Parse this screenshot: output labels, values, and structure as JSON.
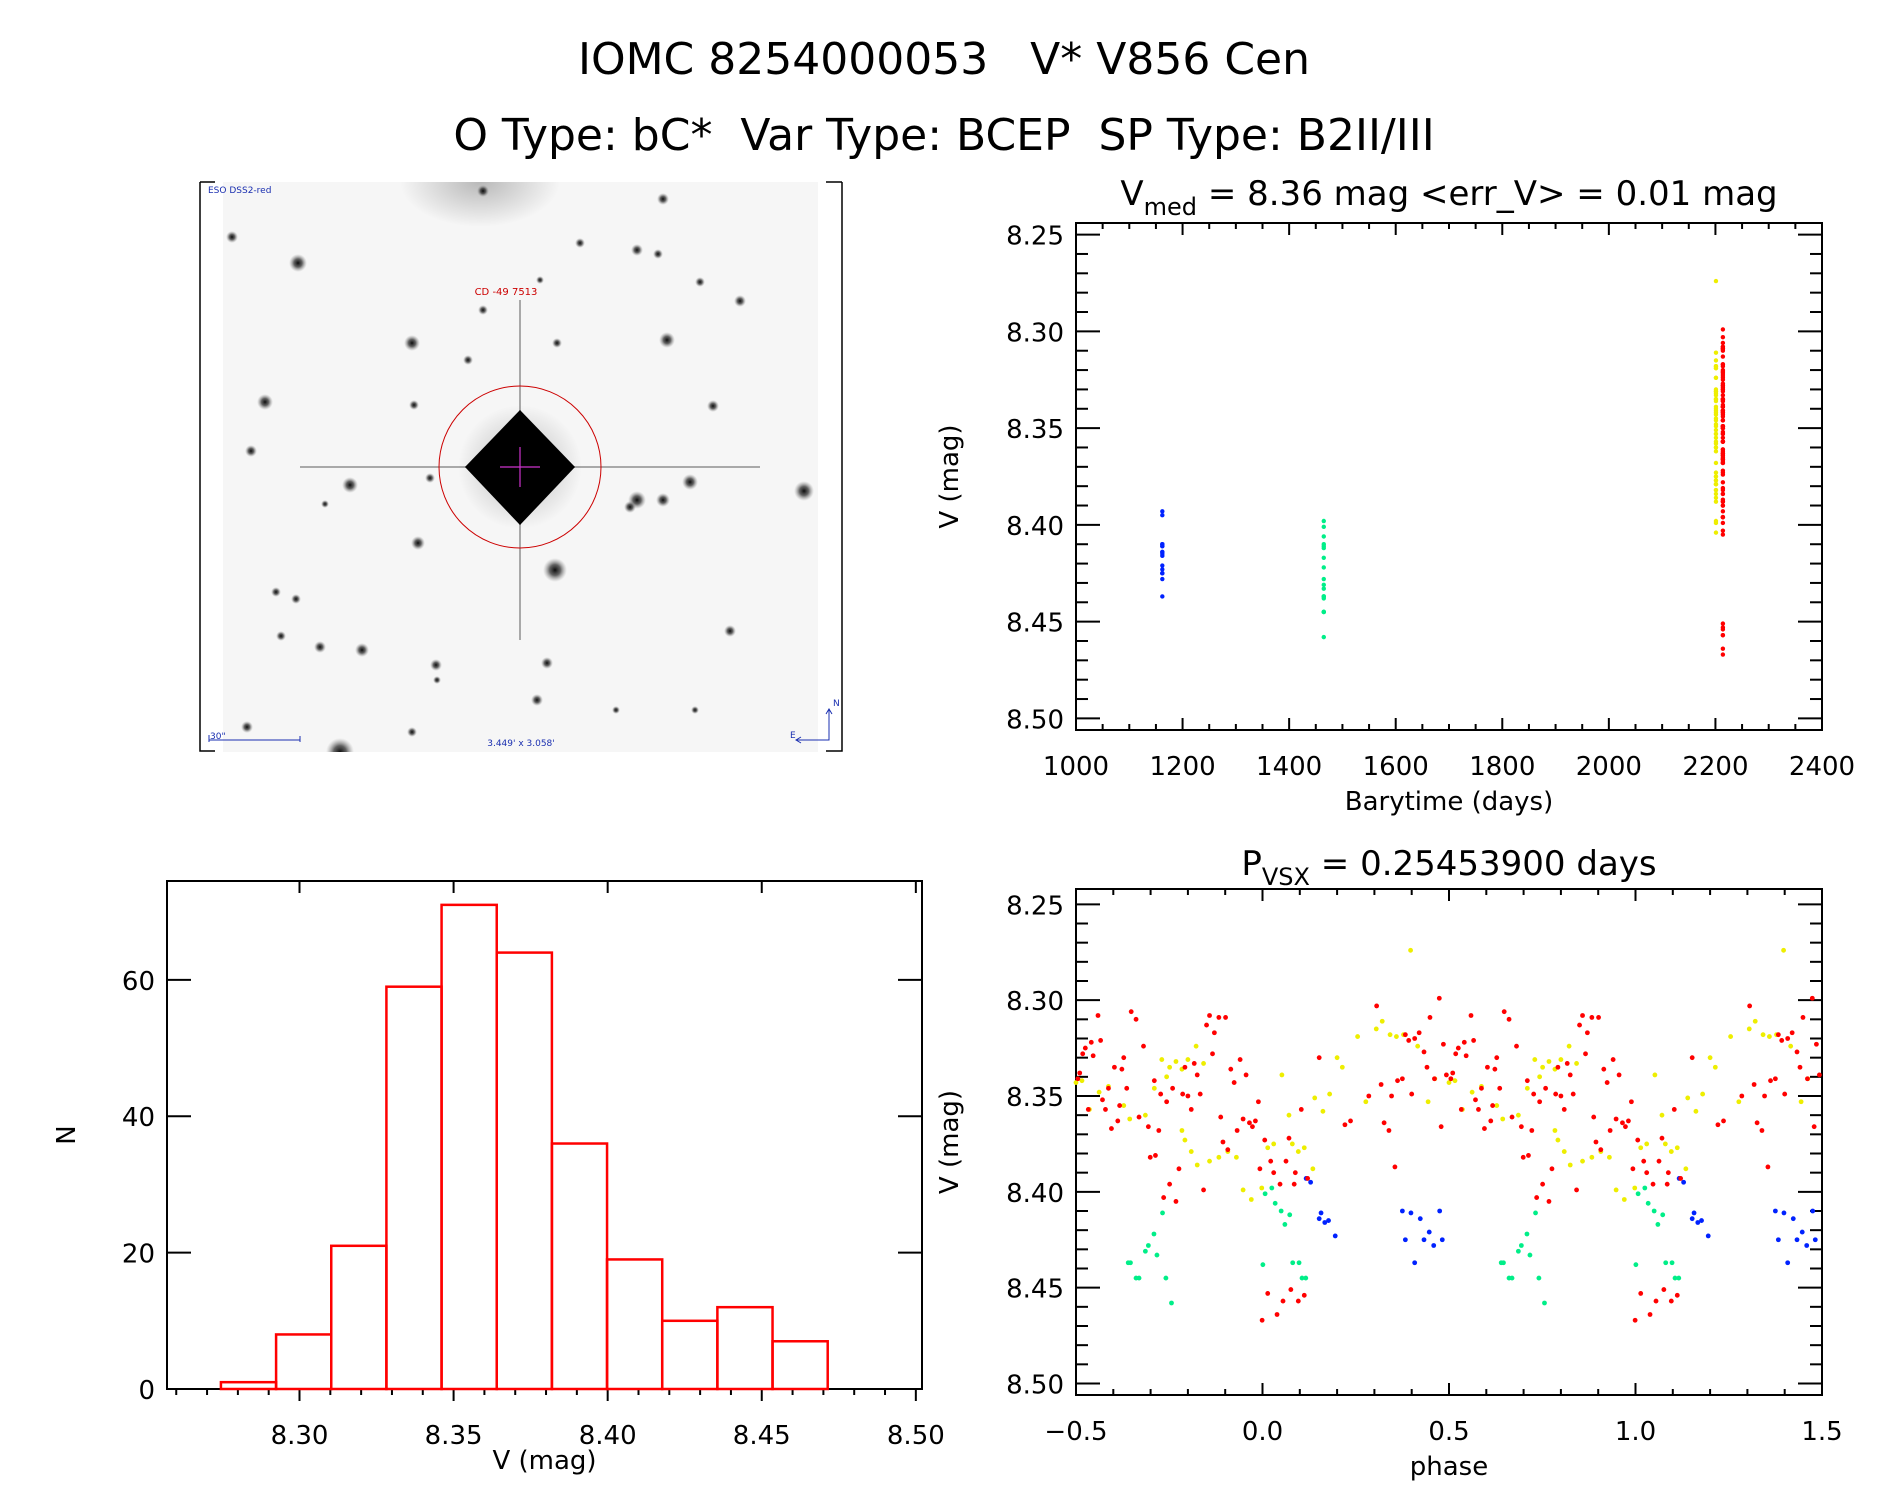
{
  "header": {
    "title_line1": "IOMC 8254000053   V* V856 Cen",
    "title_line2": "O Type: bC*  Var Type: BCEP  SP Type: B2II/III"
  },
  "finder_image": {
    "survey_label": "ESO DSS2-red",
    "target_label": "CD -49 7513",
    "scale_label": "30\"",
    "field_label": "3.449' x 3.058'",
    "north_label": "N",
    "east_label": "E",
    "colors": {
      "survey_text": "#1a2fb0",
      "target_text": "#cc0000",
      "circle": "#cc0000",
      "crosshair": "#cc33cc"
    }
  },
  "chart_data": [
    {
      "id": "histogram",
      "type": "bar",
      "style": "step-outline",
      "color": "#ff0000",
      "xlabel": "V (mag)",
      "ylabel": "N",
      "xlim": [
        8.257,
        8.502
      ],
      "ylim": [
        0,
        74.5
      ],
      "xticks": [
        "8.30",
        "8.35",
        "8.40",
        "8.45",
        "8.50"
      ],
      "yticks": [
        "0",
        "20",
        "40",
        "60"
      ],
      "bin_start": 8.2745,
      "bin_width": 0.0179,
      "values": [
        1,
        8,
        21,
        59,
        71,
        64,
        36,
        19,
        10,
        12,
        7
      ]
    },
    {
      "id": "lightcurve",
      "type": "scatter",
      "title": "V",
      "title_sub": "med",
      "title_rest": " = 8.36 mag <err_V> = 0.01 mag",
      "xlabel": "Barytime (days)",
      "ylabel": "V (mag)",
      "xlim": [
        1000,
        2400
      ],
      "ylim": [
        8.506,
        8.244
      ],
      "y_inverted": true,
      "xticks": [
        "1000",
        "1200",
        "1400",
        "1600",
        "1800",
        "2000",
        "2200",
        "2400"
      ],
      "yticks": [
        "8.25",
        "8.30",
        "8.35",
        "8.40",
        "8.45",
        "8.50"
      ]
    },
    {
      "id": "phased",
      "type": "scatter",
      "title": "P",
      "title_sub": "VSX",
      "title_rest": " = 0.25453900 days",
      "period_days": 0.254539,
      "xlabel": "phase",
      "ylabel": "V (mag)",
      "xlim": [
        -0.5,
        1.5
      ],
      "ylim": [
        8.506,
        8.242
      ],
      "y_inverted": true,
      "xticks": [
        "−0.5",
        "0.0",
        "0.5",
        "1.0",
        "1.5"
      ],
      "yticks": [
        "8.25",
        "8.30",
        "8.35",
        "8.40",
        "8.45",
        "8.50"
      ]
    }
  ],
  "observations": [
    {
      "color": "#0022ff",
      "barytime": 1162,
      "phase": [
        0.117,
        0.129,
        0.152,
        0.157,
        0.167,
        0.177,
        0.195,
        0.375,
        0.383,
        0.398,
        0.408,
        0.423,
        0.433,
        0.447,
        0.459,
        0.475,
        0.482
      ],
      "v_mag": [
        8.393,
        8.395,
        8.414,
        8.411,
        8.416,
        8.415,
        8.423,
        8.41,
        8.425,
        8.411,
        8.437,
        8.414,
        8.425,
        8.421,
        8.428,
        8.41,
        8.425
      ]
    },
    {
      "color": "#00ee88",
      "barytime": 1465,
      "phase": [
        -0.36,
        -0.354,
        -0.339,
        -0.331,
        -0.314,
        -0.306,
        -0.291,
        -0.283,
        -0.268,
        -0.259,
        -0.244,
        0.001,
        0.007,
        0.025,
        0.034,
        0.05,
        0.06,
        0.073,
        0.081,
        0.098,
        0.106,
        0.116
      ],
      "v_mag": [
        8.437,
        8.437,
        8.445,
        8.445,
        8.431,
        8.428,
        8.422,
        8.433,
        8.411,
        8.445,
        8.458,
        8.438,
        8.401,
        8.398,
        8.406,
        8.41,
        8.417,
        8.412,
        8.437,
        8.437,
        8.445,
        8.445
      ]
    },
    {
      "color": "#eeee00",
      "barytime": 2201,
      "phase": [
        -0.5,
        -0.484,
        -0.464,
        -0.438,
        -0.413,
        -0.372,
        -0.356,
        -0.314,
        -0.29,
        -0.27,
        -0.257,
        -0.249,
        -0.232,
        -0.216,
        -0.2,
        -0.178,
        -0.158,
        -0.216,
        -0.208,
        -0.191,
        -0.175,
        -0.142,
        -0.117,
        -0.093,
        -0.07,
        -0.052,
        -0.03,
        -0.002,
        0.014,
        0.03,
        0.052,
        0.071,
        0.08,
        0.096,
        0.112,
        0.135,
        0.14,
        0.162,
        0.18,
        0.2,
        0.214,
        0.255,
        0.277,
        0.305,
        0.321,
        0.342,
        0.359,
        0.378,
        0.397,
        0.416,
        0.444,
        0.462
      ],
      "v_mag": [
        8.343,
        8.342,
        8.357,
        8.348,
        8.345,
        8.355,
        8.362,
        8.36,
        8.346,
        8.331,
        8.34,
        8.335,
        8.332,
        8.336,
        8.331,
        8.324,
        8.333,
        8.368,
        8.373,
        8.379,
        8.386,
        8.384,
        8.382,
        8.379,
        8.382,
        8.399,
        8.404,
        8.398,
        8.377,
        8.375,
        8.339,
        8.36,
        8.375,
        8.379,
        8.377,
        8.388,
        8.351,
        8.358,
        8.349,
        8.33,
        8.335,
        8.319,
        8.353,
        8.315,
        8.311,
        8.318,
        8.319,
        8.318,
        8.274,
        8.324,
        8.353,
        8.341
      ]
    },
    {
      "color": "#ff0000",
      "barytime": 2214,
      "phase": [
        -0.495,
        -0.49,
        -0.482,
        -0.475,
        -0.467,
        -0.459,
        -0.454,
        -0.441,
        -0.434,
        -0.429,
        -0.421,
        -0.413,
        -0.405,
        -0.397,
        -0.388,
        -0.383,
        -0.377,
        -0.372,
        -0.364,
        -0.352,
        -0.339,
        -0.331,
        -0.319,
        -0.306,
        -0.301,
        -0.29,
        -0.287,
        -0.278,
        -0.273,
        -0.265,
        -0.257,
        -0.249,
        -0.241,
        -0.232,
        -0.224,
        -0.214,
        -0.208,
        -0.2,
        -0.191,
        -0.183,
        -0.175,
        -0.167,
        -0.158,
        -0.15,
        -0.142,
        -0.134,
        -0.129,
        -0.117,
        -0.112,
        -0.106,
        -0.099,
        -0.093,
        -0.085,
        -0.076,
        -0.068,
        -0.06,
        -0.052,
        -0.044,
        -0.035,
        -0.027,
        -0.019,
        -0.011,
        -0.007,
        -0.001,
        0.006,
        0.014,
        0.022,
        0.03,
        0.039,
        0.047,
        0.055,
        0.063,
        0.071,
        0.076,
        0.085,
        0.088,
        0.096,
        0.104,
        0.112,
        0.121,
        0.152,
        0.221,
        0.236,
        0.285,
        0.306,
        0.318,
        0.326,
        0.339,
        0.346,
        0.355,
        0.362,
        0.375,
        0.383,
        0.392,
        0.4,
        0.408,
        0.42,
        0.433,
        0.441,
        0.449,
        0.461,
        0.474,
        0.479,
        0.485,
        0.493
      ],
      "v_mag": [
        8.341,
        8.338,
        8.328,
        8.325,
        8.357,
        8.322,
        8.329,
        8.308,
        8.321,
        8.352,
        8.357,
        8.346,
        8.367,
        8.335,
        8.363,
        8.355,
        8.336,
        8.33,
        8.346,
        8.306,
        8.31,
        8.361,
        8.324,
        8.366,
        8.382,
        8.342,
        8.381,
        8.368,
        8.349,
        8.403,
        8.353,
        8.396,
        8.346,
        8.405,
        8.388,
        8.349,
        8.335,
        8.35,
        8.357,
        8.333,
        8.339,
        8.349,
        8.399,
        8.313,
        8.308,
        8.328,
        8.317,
        8.309,
        8.361,
        8.374,
        8.309,
        8.378,
        8.336,
        8.343,
        8.368,
        8.331,
        8.362,
        8.339,
        8.364,
        8.366,
        8.363,
        8.353,
        8.388,
        8.467,
        8.373,
        8.453,
        8.384,
        8.39,
        8.464,
        8.396,
        8.457,
        8.384,
        8.372,
        8.451,
        8.396,
        8.39,
        8.457,
        8.357,
        8.454,
        8.393,
        8.33,
        8.365,
        8.363,
        8.35,
        8.303,
        8.344,
        8.364,
        8.368,
        8.35,
        8.387,
        8.342,
        8.341,
        8.318,
        8.321,
        8.349,
        8.32,
        8.317,
        8.327,
        8.335,
        8.309,
        8.341,
        8.299,
        8.366,
        8.323,
        8.339
      ]
    }
  ]
}
